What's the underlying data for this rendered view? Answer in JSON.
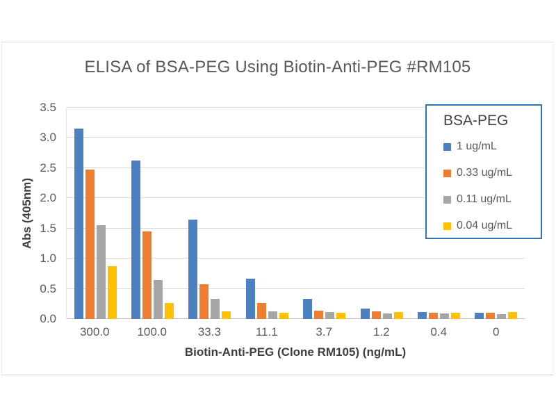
{
  "chart_data": {
    "type": "bar",
    "title": "ELISA of BSA-PEG Using Biotin-Anti-PEG #RM105",
    "xlabel": "Biotin-Anti-PEG (Clone RM105) (ng/mL)",
    "ylabel": "Abs (405nm)",
    "categories": [
      "300.0",
      "100.0",
      "33.3",
      "11.1",
      "3.7",
      "1.2",
      "0.4",
      "0"
    ],
    "series": [
      {
        "name": "1 ug/mL",
        "color": "#4C80C0",
        "values": [
          3.15,
          2.62,
          1.65,
          0.67,
          0.33,
          0.17,
          0.12,
          0.1
        ]
      },
      {
        "name": "0.33 ug/mL",
        "color": "#ED7D31",
        "values": [
          2.48,
          1.45,
          0.58,
          0.26,
          0.14,
          0.13,
          0.1,
          0.1
        ]
      },
      {
        "name": "0.11 ug/mL",
        "color": "#A6A6A6",
        "values": [
          1.55,
          0.65,
          0.33,
          0.13,
          0.11,
          0.09,
          0.09,
          0.08
        ]
      },
      {
        "name": "0.04 ug/mL",
        "color": "#FFC000",
        "values": [
          0.88,
          0.27,
          0.13,
          0.1,
          0.1,
          0.12,
          0.1,
          0.11
        ]
      }
    ],
    "ylim": [
      0,
      3.5
    ],
    "ytick_step": 0.5,
    "ytick_decimals": 1,
    "grid": true,
    "legend": {
      "title": "BSA-PEG",
      "position": "top-right",
      "border_color": "#2E75B6"
    }
  },
  "colors": {
    "gridline": "#D9D9D9",
    "axis_line": "#BFBFBF",
    "tick_text": "#595959",
    "title_text": "#595959",
    "axis_title_text": "#3F3F3F"
  }
}
